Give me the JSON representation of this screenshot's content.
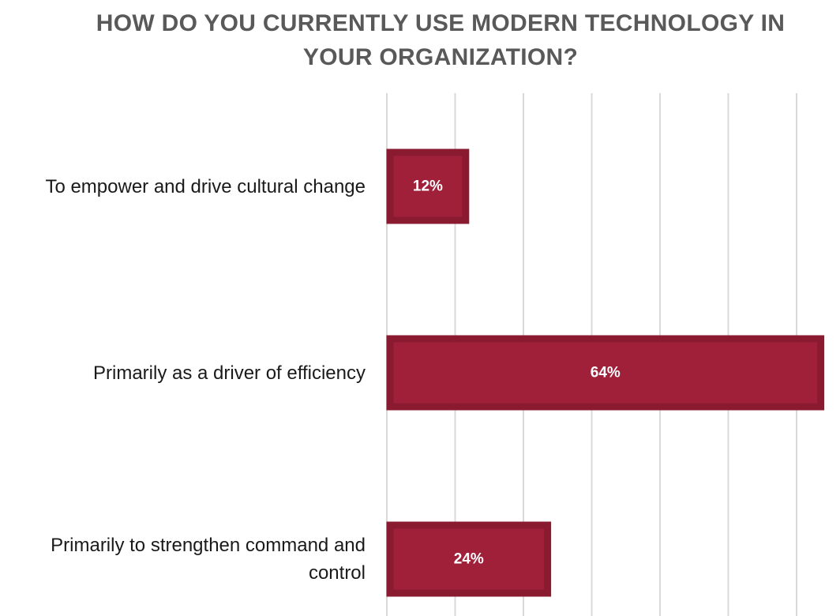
{
  "chart_data": {
    "type": "bar",
    "orientation": "horizontal",
    "title_lines": [
      "HOW DO YOU CURRENTLY USE MODERN TECHNOLOGY IN",
      "YOUR ORGANIZATION?"
    ],
    "categories": [
      [
        "To empower and drive cultural change"
      ],
      [
        "Primarily as a driver of efficiency"
      ],
      [
        "Primarily to strengthen command and",
        "control"
      ]
    ],
    "values": [
      12,
      64,
      24
    ],
    "data_labels": [
      "12%",
      "64%",
      "24%"
    ],
    "value_unit": "%",
    "xlim": [
      0,
      60
    ],
    "gridlines": true,
    "value_axis_labels_visible": false,
    "bar_color": "#a0203a",
    "bar_border_color": "#8a1a30",
    "grid_color": "#d9d9d9"
  }
}
